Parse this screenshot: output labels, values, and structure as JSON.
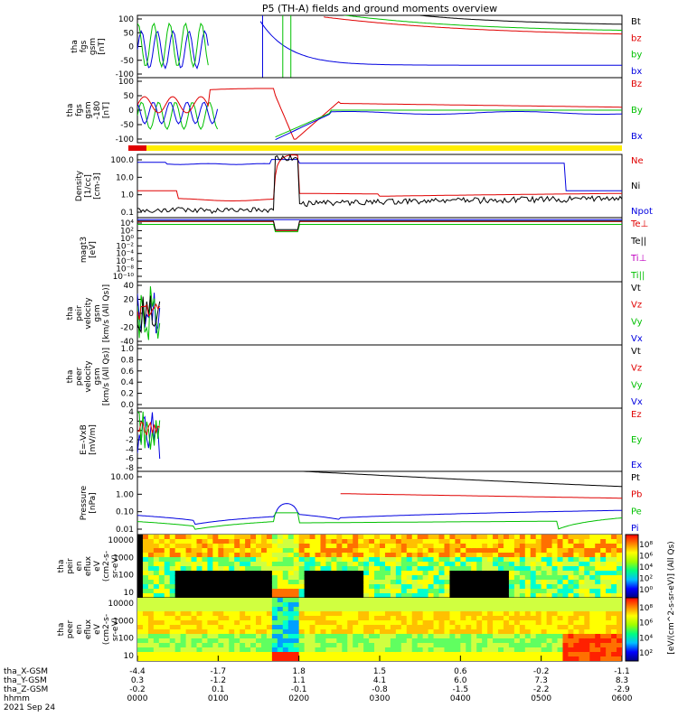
{
  "title": "P5 (TH-A) fields and ground moments overview",
  "chart_data": {
    "type": "line",
    "x_ticks": [
      "0000",
      "0100",
      "0200",
      "0300",
      "0400",
      "0500",
      "0600"
    ],
    "xlim": [
      0,
      6
    ],
    "panels": [
      {
        "id": "fgs",
        "ylabel": [
          "tha",
          "fgs",
          "gsm",
          "[nT]"
        ],
        "ylim": [
          -100,
          100
        ],
        "log": false,
        "ticks": [
          "100",
          "50",
          "0",
          "-50",
          "-100"
        ],
        "legend": [
          {
            "name": "Bt",
            "color": "#000000"
          },
          {
            "name": "bz",
            "color": "#e00000"
          },
          {
            "name": "by",
            "color": "#00c000"
          },
          {
            "name": "bx",
            "color": "#0000e0"
          }
        ]
      },
      {
        "id": "fgs_sm",
        "ylabel": [
          "tha",
          "fgs",
          "gsm",
          "-180",
          "[nT]"
        ],
        "ylim": [
          -120,
          120
        ],
        "log": false,
        "ticks": [
          "100",
          "50",
          "0",
          "-50",
          "-100"
        ],
        "legend": [
          {
            "name": "Bz",
            "color": "#e00000"
          },
          {
            "name": "By",
            "color": "#00c000"
          },
          {
            "name": "Bx",
            "color": "#0000e0"
          }
        ]
      },
      {
        "id": "density",
        "ylabel": [
          "Density",
          "[1/cc]",
          "[cm-3]"
        ],
        "ylim": [
          0.05,
          300
        ],
        "log": true,
        "ticks": [
          "100.0",
          "10.0",
          "1.0",
          "0.1"
        ],
        "legend": [
          {
            "name": "Ne",
            "color": "#e00000"
          },
          {
            "name": "Ni",
            "color": "#000000"
          },
          {
            "name": "Npot",
            "color": "#0000e0"
          }
        ]
      },
      {
        "id": "temp",
        "ylabel": [
          "magt3",
          "[eV]"
        ],
        "ylim": [
          1e-12,
          10000.0
        ],
        "log": true,
        "ticks": [
          "10⁴",
          "10²",
          "10⁰",
          "10⁻²",
          "10⁻⁴",
          "10⁻⁶",
          "10⁻⁸",
          "10⁻¹⁰"
        ],
        "legend": [
          {
            "name": "Te⊥",
            "color": "#e00000"
          },
          {
            "name": "Te||",
            "color": "#000000"
          },
          {
            "name": "Ti⊥",
            "color": "#c000c0"
          },
          {
            "name": "Ti||",
            "color": "#00c000"
          }
        ]
      },
      {
        "id": "peir_v",
        "ylabel": [
          "tha",
          "peir",
          "velocity",
          "gsm",
          "[km/s (All Qs)]"
        ],
        "ylim": [
          -40,
          40
        ],
        "log": false,
        "ticks": [
          "40",
          "20",
          "0",
          "-20",
          "-40"
        ],
        "legend": [
          {
            "name": "Vt",
            "color": "#000000"
          },
          {
            "name": "Vz",
            "color": "#e00000"
          },
          {
            "name": "Vy",
            "color": "#00c000"
          },
          {
            "name": "Vx",
            "color": "#0000e0"
          }
        ]
      },
      {
        "id": "peer_v",
        "ylabel": [
          "tha",
          "peer",
          "velocity",
          "gsm",
          "[km/s (All Qs)]"
        ],
        "ylim": [
          0,
          1
        ],
        "log": false,
        "ticks": [
          "1.0",
          "0.8",
          "0.6",
          "0.4",
          "0.2",
          "0.0"
        ],
        "legend": [
          {
            "name": "Vt",
            "color": "#000000"
          },
          {
            "name": "Vz",
            "color": "#e00000"
          },
          {
            "name": "Vy",
            "color": "#00c000"
          },
          {
            "name": "Vx",
            "color": "#0000e0"
          }
        ]
      },
      {
        "id": "efield",
        "ylabel": [
          "E=-VxB",
          "[mV/m]"
        ],
        "ylim": [
          -8,
          4
        ],
        "log": false,
        "ticks": [
          "4",
          "2",
          "0",
          "-2",
          "-4",
          "-6",
          "-8"
        ],
        "legend": [
          {
            "name": "Ez",
            "color": "#e00000"
          },
          {
            "name": "Ey",
            "color": "#00c000"
          },
          {
            "name": "Ex",
            "color": "#0000e0"
          }
        ]
      },
      {
        "id": "pressure",
        "ylabel": [
          "Pressure",
          "[nPa]"
        ],
        "ylim": [
          0.005,
          30
        ],
        "log": true,
        "ticks": [
          "10.00",
          "1.00",
          "0.10",
          "0.01"
        ],
        "legend": [
          {
            "name": "Pt",
            "color": "#000000"
          },
          {
            "name": "Pb",
            "color": "#e00000"
          },
          {
            "name": "Pe",
            "color": "#00c000"
          },
          {
            "name": "Pi",
            "color": "#0000e0"
          }
        ]
      },
      {
        "id": "peir_spec",
        "ylabel": [
          "tha",
          "peir",
          "en",
          "eflux",
          "eV",
          "(cm2-s-",
          "sr-eV)"
        ],
        "ylim": [
          7,
          20000
        ],
        "log": true,
        "ticks": [
          "10000",
          "1000",
          "100",
          "10"
        ],
        "spectrogram": true
      },
      {
        "id": "peer_spec",
        "ylabel": [
          "tha",
          "peer",
          "en",
          "eflux",
          "eV",
          "(cm2-s-",
          "sr-eV)"
        ],
        "ylim": [
          7,
          30000
        ],
        "log": true,
        "ticks": [
          "10000",
          "1000",
          "100",
          "10"
        ],
        "spectrogram": true
      }
    ],
    "colorbar": {
      "label": "[eV/(cm^2-s-sr-eV)] (All Qs)",
      "ticks": [
        "10⁸",
        "10⁶",
        "10⁴",
        "10²",
        "10⁰"
      ],
      "ticks2": [
        "10⁸",
        "10⁶",
        "10⁴",
        "10²"
      ]
    },
    "ephemeris": {
      "rows": [
        {
          "label": "tha_X-GSM",
          "values": [
            "-4.4",
            "-1.7",
            "1.8",
            "1.5",
            "0.6",
            "-0.2",
            "-1.1"
          ]
        },
        {
          "label": "tha_Y-GSM",
          "values": [
            "0.3",
            "-1.2",
            "1.1",
            "4.1",
            "6.0",
            "7.3",
            "8.3"
          ]
        },
        {
          "label": "tha_Z-GSM",
          "values": [
            "-0.2",
            "0.1",
            "-0.1",
            "-0.8",
            "-1.5",
            "-2.2",
            "-2.9"
          ]
        },
        {
          "label": "hhmm",
          "values": [
            "0000",
            "0100",
            "0200",
            "0300",
            "0400",
            "0500",
            "0600"
          ]
        }
      ],
      "date": "2021 Sep 24"
    },
    "mode_bar": {
      "colors": [
        "#e00000",
        "#ffee00"
      ]
    }
  }
}
